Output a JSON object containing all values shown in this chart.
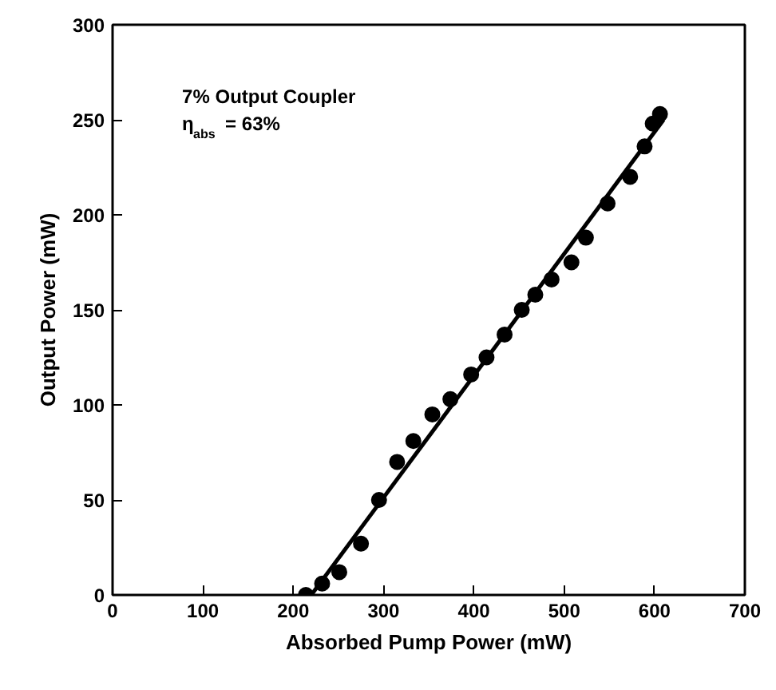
{
  "chart_data": {
    "type": "scatter",
    "xlabel": "Absorbed Pump Power (mW)",
    "ylabel": "Output Power (mW)",
    "xlim": [
      0,
      700
    ],
    "ylim": [
      0,
      300
    ],
    "xticks": [
      0,
      100,
      200,
      300,
      400,
      500,
      600,
      700
    ],
    "yticks": [
      0,
      50,
      100,
      150,
      200,
      250,
      300
    ],
    "grid": false,
    "marker": "circle",
    "annotations": [
      "7% Output Coupler",
      "η$_{abs}$ = 63%"
    ],
    "series": [
      {
        "color": "#000000",
        "x": [
          214,
          232,
          251,
          275,
          295,
          315,
          333,
          354,
          374,
          397,
          414,
          434,
          453,
          468,
          486,
          508,
          524,
          548,
          573,
          589,
          598,
          606
        ],
        "values": [
          0,
          6,
          12,
          27,
          50,
          70,
          81,
          95,
          103,
          116,
          125,
          137,
          150,
          158,
          166,
          175,
          188,
          206,
          220,
          236,
          248,
          253
        ]
      },
      {
        "type": "line",
        "color": "#000000",
        "line_style": "solid",
        "marker": "none",
        "x": [
          220,
          610
        ],
        "values": [
          0,
          250
        ]
      }
    ]
  }
}
